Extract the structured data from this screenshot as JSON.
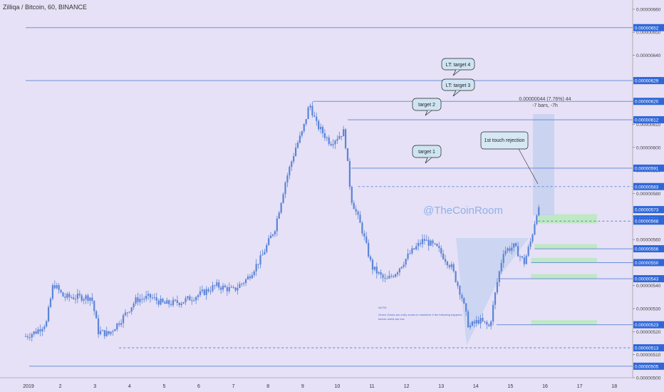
{
  "header": {
    "symbol_title": "Zilliqa / Bitcoin, 60, BINANCE"
  },
  "watermark": "@TheCoinRoom",
  "colors": {
    "background": "#e6e1f6",
    "level_line": "#5d83d6",
    "candle": "#5b84d8",
    "price_tag": "#2f67d8",
    "zone": "#bfe8c4",
    "measure_box": "#c6d2f0",
    "watermark": "#8fb0ea"
  },
  "callouts": [
    {
      "id": "lt-target-4",
      "text": "LT: target 4"
    },
    {
      "id": "lt-target-3",
      "text": "LT: target 3"
    },
    {
      "id": "target-2",
      "text": "target 2"
    },
    {
      "id": "target-1",
      "text": "target 1"
    },
    {
      "id": "first-touch",
      "text": "1st touch rejection"
    }
  ],
  "measure": {
    "line1": "0.00000044 (7.76%) 44",
    "line2": "-7 bars, -7h"
  },
  "note": {
    "title": "NOTE:",
    "body_line1": "Green Zones are entry zones to maximize if the following happens",
    "body_line2": "before retest are low"
  },
  "chart_data": {
    "type": "candlestick",
    "title": "Zilliqa / Bitcoin, 60, BINANCE",
    "x_ticks": [
      "2019",
      "2",
      "3",
      "4",
      "5",
      "6",
      "7",
      "8",
      "9",
      "10",
      "11",
      "12",
      "13",
      "14",
      "15",
      "16",
      "17",
      "18"
    ],
    "y_ticks": [
      "0.00000660",
      "0.00000650",
      "0.00000640",
      "0.00000630",
      "0.00000620",
      "0.00000610",
      "0.00000600",
      "0.00000590",
      "0.00000580",
      "0.00000570",
      "0.00000560",
      "0.00000550",
      "0.00000540",
      "0.00000530",
      "0.00000520",
      "0.00000510",
      "0.00000500"
    ],
    "ylim": [
      5e-06,
      6.64e-06
    ],
    "price_tags": [
      "0.00000652",
      "0.00000629",
      "0.00000620",
      "0.00000612",
      "0.00000591",
      "0.00000583",
      "0.00000573",
      "0.00000569",
      "0.00000568",
      "0.00000556",
      "0.00000550",
      "0.00000543",
      "0.00000523",
      "0.00000513",
      "0.00000505"
    ],
    "horizontal_levels": [
      {
        "price": 6.52e-06,
        "from_day": 1.0,
        "style": "solid"
      },
      {
        "price": 6.29e-06,
        "from_day": 1.0,
        "style": "solid"
      },
      {
        "price": 6.2e-06,
        "from_day": 9.3,
        "style": "solid"
      },
      {
        "price": 6.12e-06,
        "from_day": 10.3,
        "style": "solid"
      },
      {
        "price": 5.91e-06,
        "from_day": 10.4,
        "style": "solid"
      },
      {
        "price": 5.83e-06,
        "from_day": 10.6,
        "style": "dashed"
      },
      {
        "price": 5.68e-06,
        "from_day": 15.8,
        "style": "dashed"
      },
      {
        "price": 5.56e-06,
        "from_day": 15.7,
        "style": "solid"
      },
      {
        "price": 5.5e-06,
        "from_day": 15.6,
        "style": "solid"
      },
      {
        "price": 5.43e-06,
        "from_day": 14.7,
        "style": "solid"
      },
      {
        "price": 5.23e-06,
        "from_day": 14.6,
        "style": "solid"
      },
      {
        "price": 5.13e-06,
        "from_day": 3.7,
        "style": "dashed"
      },
      {
        "price": 5.05e-06,
        "from_day": 1.1,
        "style": "solid"
      }
    ],
    "green_zones": [
      {
        "from_day": 15.8,
        "to_day": 17.5,
        "top": 5.71e-06,
        "bottom": 5.67e-06
      },
      {
        "from_day": 15.7,
        "to_day": 17.5,
        "top": 5.58e-06,
        "bottom": 5.56e-06
      },
      {
        "from_day": 15.6,
        "to_day": 17.5,
        "top": 5.52e-06,
        "bottom": 5.5e-06
      },
      {
        "from_day": 15.6,
        "to_day": 17.5,
        "top": 5.45e-06,
        "bottom": 5.43e-06
      },
      {
        "from_day": 15.6,
        "to_day": 17.5,
        "top": 5.25e-06,
        "bottom": 5.23e-06
      }
    ],
    "price_path": [
      [
        1.0,
        5.18e-06
      ],
      [
        1.3,
        5.2e-06
      ],
      [
        1.6,
        5.24e-06
      ],
      [
        1.8,
        5.41e-06
      ],
      [
        2.1,
        5.35e-06
      ],
      [
        2.5,
        5.35e-06
      ],
      [
        2.9,
        5.35e-06
      ],
      [
        3.1,
        5.2e-06
      ],
      [
        3.4,
        5.19e-06
      ],
      [
        3.8,
        5.26e-06
      ],
      [
        4.2,
        5.34e-06
      ],
      [
        4.6,
        5.35e-06
      ],
      [
        5.0,
        5.32e-06
      ],
      [
        5.5,
        5.33e-06
      ],
      [
        6.0,
        5.36e-06
      ],
      [
        6.5,
        5.4e-06
      ],
      [
        7.0,
        5.38e-06
      ],
      [
        7.4,
        5.43e-06
      ],
      [
        7.8,
        5.52e-06
      ],
      [
        8.2,
        5.65e-06
      ],
      [
        8.5,
        5.85e-06
      ],
      [
        8.8,
        6e-06
      ],
      [
        9.0,
        6.07e-06
      ],
      [
        9.2,
        6.19e-06
      ],
      [
        9.4,
        6.1e-06
      ],
      [
        9.8,
        6.02e-06
      ],
      [
        10.2,
        6.07e-06
      ],
      [
        10.4,
        5.78e-06
      ],
      [
        10.7,
        5.65e-06
      ],
      [
        11.0,
        5.48e-06
      ],
      [
        11.4,
        5.42e-06
      ],
      [
        11.7,
        5.46e-06
      ],
      [
        12.1,
        5.54e-06
      ],
      [
        12.5,
        5.6e-06
      ],
      [
        12.9,
        5.56e-06
      ],
      [
        13.3,
        5.48e-06
      ],
      [
        13.6,
        5.35e-06
      ],
      [
        13.8,
        5.22e-06
      ],
      [
        14.1,
        5.25e-06
      ],
      [
        14.4,
        5.22e-06
      ],
      [
        14.6,
        5.4e-06
      ],
      [
        14.8,
        5.55e-06
      ],
      [
        15.1,
        5.57e-06
      ],
      [
        15.4,
        5.5e-06
      ],
      [
        15.6,
        5.6e-06
      ],
      [
        15.8,
        5.75e-06
      ],
      [
        15.85,
        5.69e-06
      ]
    ]
  }
}
